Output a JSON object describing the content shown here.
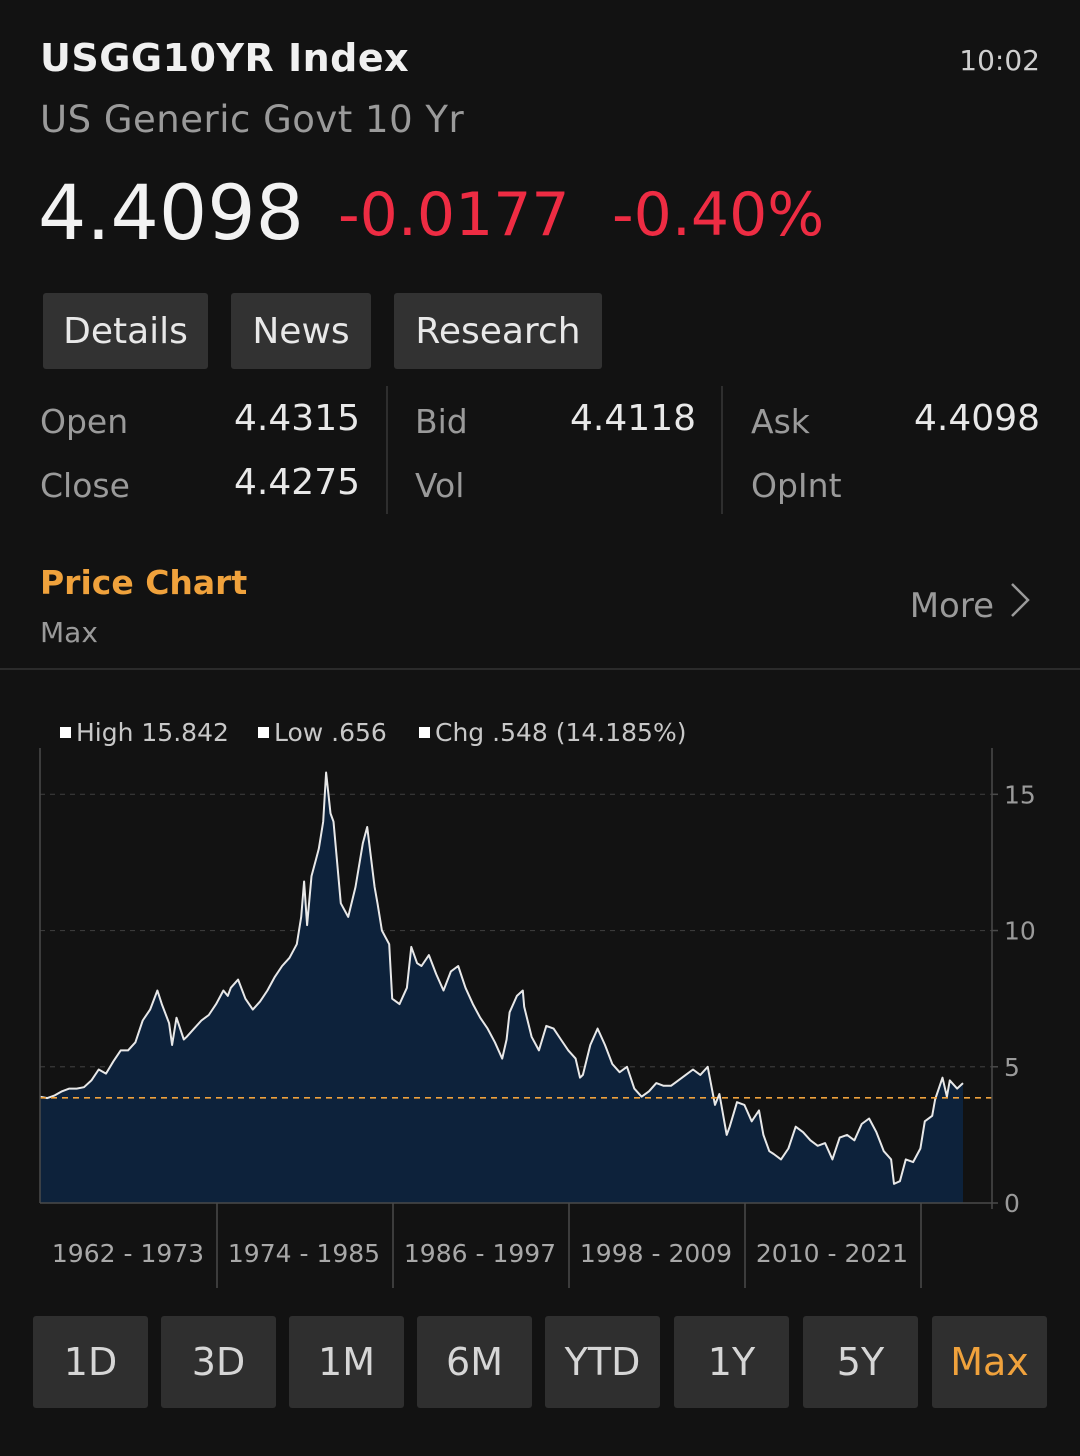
{
  "header": {
    "ticker": "USGG10YR Index",
    "time": "10:02",
    "name": "US Generic Govt 10 Yr",
    "price": "4.4098",
    "change": "-0.0177",
    "change_pct": "-0.40%"
  },
  "tabs": [
    "Details",
    "News",
    "Research"
  ],
  "quote": {
    "open_label": "Open",
    "open_value": "4.4315",
    "close_label": "Close",
    "close_value": "4.4275",
    "bid_label": "Bid",
    "bid_value": "4.4118",
    "vol_label": "Vol",
    "vol_value": "",
    "ask_label": "Ask",
    "ask_value": "4.4098",
    "opint_label": "OpInt",
    "opint_value": ""
  },
  "price_chart": {
    "title": "Price Chart",
    "range": "Max",
    "more_label": "More"
  },
  "colors": {
    "accent": "#f0a23c",
    "negative": "#ee2c43",
    "area_fill": "#0d223b",
    "line": "#e8e8e8"
  },
  "chart_data": {
    "type": "area",
    "legend": [
      {
        "label": "High 15.842"
      },
      {
        "label": "Low .656"
      },
      {
        "label": "Chg .548 (14.185%)"
      }
    ],
    "legend_placement": "top-left",
    "x_tick_labels": [
      "1962 - 1973",
      "1974 - 1985",
      "1986 - 1997",
      "1998 - 2009",
      "2010 - 2021"
    ],
    "y_ticks": [
      0,
      5,
      10,
      15
    ],
    "ylim": [
      0,
      16.7
    ],
    "xlim": [
      1962,
      2024.9
    ],
    "reference_line": 3.86,
    "grid": "horizontal dashed",
    "x": [
      1962,
      1962.5,
      1963,
      1963.5,
      1964,
      1964.5,
      1965,
      1965.5,
      1966,
      1966.5,
      1967,
      1967.5,
      1968,
      1968.5,
      1969,
      1969.5,
      1970,
      1970.3,
      1970.8,
      1971,
      1971.3,
      1971.8,
      1972,
      1972.5,
      1973,
      1973.5,
      1974,
      1974.5,
      1974.8,
      1975,
      1975.5,
      1976,
      1976.5,
      1977,
      1977.5,
      1978,
      1978.5,
      1979,
      1979.5,
      1979.8,
      1980,
      1980.2,
      1980.5,
      1980.8,
      1981,
      1981.3,
      1981.5,
      1981.8,
      1982,
      1982.5,
      1983,
      1983.5,
      1984,
      1984.3,
      1984.8,
      1985,
      1985.3,
      1985.8,
      1986,
      1986.5,
      1987,
      1987.3,
      1987.7,
      1988,
      1988.5,
      1989,
      1989.5,
      1990,
      1990.5,
      1991,
      1991.5,
      1992,
      1992.5,
      1993,
      1993.5,
      1993.8,
      1994,
      1994.5,
      1994.9,
      1995,
      1995.5,
      1996,
      1996.5,
      1997,
      1997.5,
      1998,
      1998.5,
      1998.8,
      1999,
      1999.5,
      2000,
      2000.5,
      2001,
      2001.5,
      2002,
      2002.5,
      2003,
      2003.5,
      2004,
      2004.5,
      2005,
      2005.5,
      2006,
      2006.5,
      2007,
      2007.5,
      2008,
      2008.3,
      2008.8,
      2009,
      2009.5,
      2010,
      2010.5,
      2011,
      2011.3,
      2011.7,
      2012,
      2012.5,
      2013,
      2013.5,
      2014,
      2014.5,
      2015,
      2015.5,
      2016,
      2016.5,
      2017,
      2017.5,
      2018,
      2018.5,
      2019,
      2019.5,
      2020,
      2020.2,
      2020.6,
      2021,
      2021.5,
      2022,
      2022.3,
      2022.8,
      2023,
      2023.5,
      2023.8,
      2024,
      2024.5,
      2024.9
    ],
    "values": [
      3.9,
      3.85,
      3.95,
      4.1,
      4.2,
      4.2,
      4.25,
      4.5,
      4.9,
      4.75,
      5.2,
      5.6,
      5.6,
      5.9,
      6.7,
      7.1,
      7.8,
      7.3,
      6.6,
      5.8,
      6.8,
      6.0,
      6.1,
      6.4,
      6.7,
      6.9,
      7.3,
      7.8,
      7.6,
      7.9,
      8.2,
      7.5,
      7.1,
      7.4,
      7.8,
      8.3,
      8.7,
      9.0,
      9.5,
      10.5,
      11.8,
      10.2,
      12.0,
      12.6,
      13.0,
      14.0,
      15.8,
      14.3,
      14.0,
      11.0,
      10.5,
      11.6,
      13.2,
      13.8,
      11.6,
      11.0,
      10.0,
      9.5,
      7.5,
      7.3,
      7.9,
      9.4,
      8.8,
      8.7,
      9.1,
      8.4,
      7.8,
      8.5,
      8.7,
      7.9,
      7.3,
      6.8,
      6.4,
      5.9,
      5.3,
      6.0,
      7.0,
      7.6,
      7.8,
      7.2,
      6.1,
      5.6,
      6.5,
      6.4,
      6.0,
      5.6,
      5.3,
      4.6,
      4.7,
      5.8,
      6.4,
      5.8,
      5.1,
      4.8,
      5.0,
      4.2,
      3.9,
      4.1,
      4.4,
      4.3,
      4.3,
      4.5,
      4.7,
      4.9,
      4.7,
      5.0,
      3.6,
      4.0,
      2.5,
      2.8,
      3.7,
      3.6,
      3.0,
      3.4,
      2.5,
      1.9,
      1.8,
      1.6,
      2.0,
      2.8,
      2.6,
      2.3,
      2.1,
      2.2,
      1.6,
      2.4,
      2.5,
      2.3,
      2.9,
      3.1,
      2.6,
      1.9,
      1.6,
      0.7,
      0.8,
      1.6,
      1.5,
      2.0,
      3.0,
      3.2,
      3.8,
      4.6,
      3.9,
      4.5,
      4.2,
      4.4
    ]
  },
  "periods": [
    "1D",
    "3D",
    "1M",
    "6M",
    "YTD",
    "1Y",
    "5Y",
    "Max"
  ],
  "active_period": "Max"
}
